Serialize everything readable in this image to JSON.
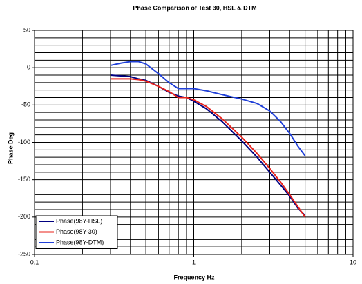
{
  "chart_data": {
    "type": "line",
    "title": "Phase Comparison of Test 30, HSL & DTM",
    "xlabel": "Frequency Hz",
    "ylabel": "Phase Deg",
    "log_x": true,
    "grid": true,
    "legend": "lower left",
    "x": [
      0.3,
      0.35,
      0.4,
      0.45,
      0.5,
      0.6,
      0.7,
      0.8,
      0.9,
      1,
      1.2,
      1.5,
      2,
      2.5,
      3,
      3.5,
      4,
      4.5,
      5
    ],
    "series": [
      {
        "name": "Phase(98Y-HSL)",
        "color": "#000080",
        "values": [
          -10,
          -11,
          -12,
          -15,
          -17,
          -25,
          -33,
          -38,
          -40,
          -45,
          -55,
          -72,
          -98,
          -120,
          -140,
          -157,
          -172,
          -188,
          -198
        ]
      },
      {
        "name": "Phase(98Y-30)",
        "color": "#e8201a",
        "values": [
          -15,
          -15,
          -15,
          -16,
          -18,
          -25,
          -32,
          -40,
          -40,
          -43,
          -52,
          -68,
          -93,
          -115,
          -135,
          -153,
          -170,
          -186,
          -200
        ]
      },
      {
        "name": "Phase(98Y-DTM)",
        "color": "#1f3fd8",
        "values": [
          3,
          6,
          8,
          8,
          5,
          -8,
          -20,
          -28,
          -28,
          -28,
          -31,
          -36,
          -42,
          -48,
          -58,
          -72,
          -88,
          -105,
          -118
        ]
      }
    ],
    "xlim": [
      0.1,
      10
    ],
    "xticks": [
      0.1,
      1,
      10
    ],
    "xminor_ticks": [
      0.2,
      0.3,
      0.4,
      0.5,
      0.6,
      0.7,
      0.8,
      0.9,
      2,
      3,
      4,
      5,
      6,
      7,
      8,
      9
    ],
    "ylim": [
      -250,
      50
    ],
    "yticks": [
      50,
      0,
      -50,
      -100,
      -150,
      -200,
      -250
    ],
    "yminor_ticks": [
      40,
      30,
      20,
      10,
      -10,
      -20,
      -30,
      -40,
      -60,
      -70,
      -80,
      -90,
      -110,
      -120,
      -130,
      -140,
      -160,
      -170,
      -180,
      -190,
      -210,
      -220,
      -230,
      -240
    ]
  }
}
